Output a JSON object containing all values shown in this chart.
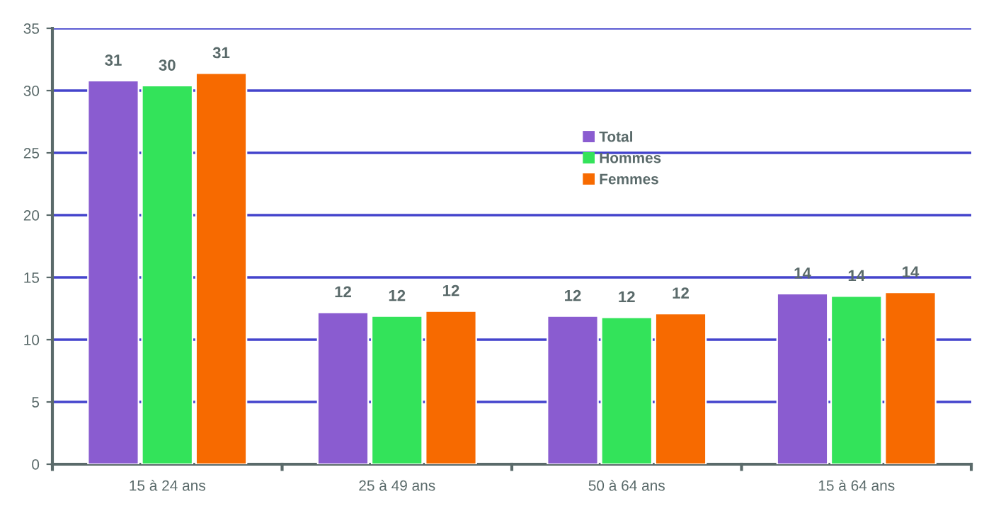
{
  "chart_data": {
    "type": "bar",
    "categories": [
      "15 à 24 ans",
      "25 à 49 ans",
      "50 à 64 ans",
      "15 à 64 ans"
    ],
    "series": [
      {
        "name": "Total",
        "color": "#8a5cd0",
        "values": [
          30.8,
          12.2,
          11.9,
          13.7
        ],
        "value_labels": [
          "31",
          "12",
          "12",
          "14"
        ]
      },
      {
        "name": "Hommes",
        "color": "#33e35a",
        "values": [
          30.4,
          11.9,
          11.8,
          13.5
        ],
        "value_labels": [
          "30",
          "12",
          "12",
          "14"
        ]
      },
      {
        "name": "Femmes",
        "color": "#f76a00",
        "values": [
          31.4,
          12.3,
          12.1,
          13.8
        ],
        "value_labels": [
          "31",
          "12",
          "12",
          "14"
        ]
      }
    ],
    "ylim": [
      0,
      35
    ],
    "yticks": [
      0,
      5,
      10,
      15,
      20,
      25,
      30,
      35
    ],
    "grid": "y",
    "legend": "center"
  }
}
